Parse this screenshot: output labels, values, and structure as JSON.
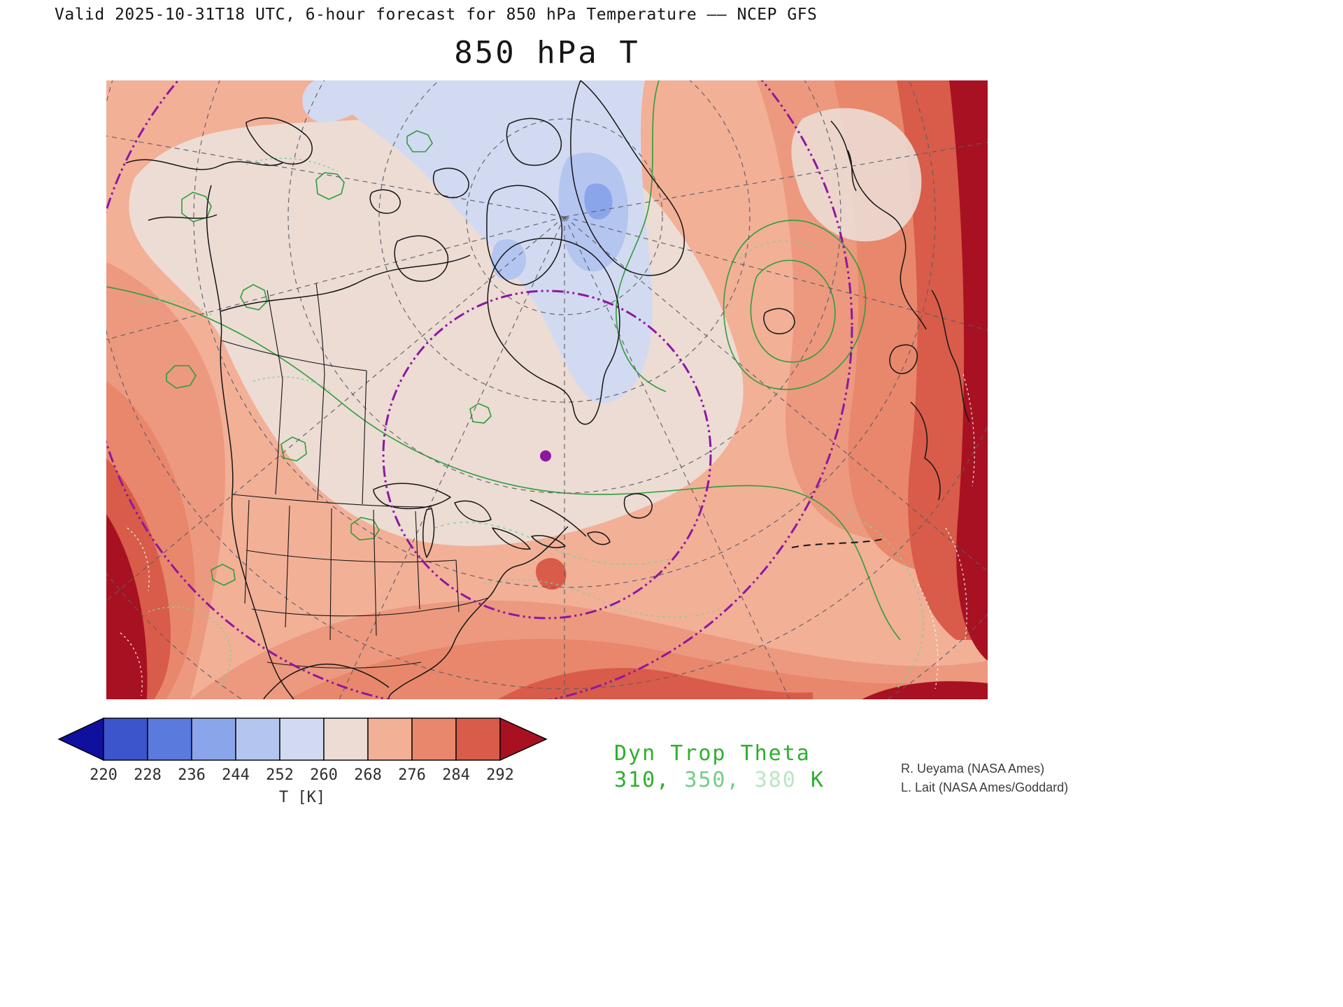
{
  "header": {
    "valid_line": "Valid 2025-10-31T18 UTC, 6-hour forecast for 850 hPa Temperature –– NCEP GFS",
    "title": "850 hPa T"
  },
  "colorbar": {
    "ticks": [
      "220",
      "228",
      "236",
      "244",
      "252",
      "260",
      "268",
      "276",
      "284",
      "292"
    ],
    "unit_label": "T [K]",
    "colors": [
      "#10109e",
      "#3c55cd",
      "#5b7ade",
      "#8aa5ea",
      "#b4c5f0",
      "#d2daf1",
      "#ecdcd4",
      "#f2b097",
      "#e8876b",
      "#d85c49",
      "#a81122"
    ]
  },
  "theta_legend": {
    "title": "Dyn Trop Theta",
    "title_color": "#2faf2f",
    "levels": [
      {
        "value": "310",
        "color": "#2faf2f"
      },
      {
        "value": "350",
        "color": "#74cc85"
      },
      {
        "value": "380",
        "color": "#b9e6c1"
      }
    ],
    "separator": ", ",
    "unit": " K"
  },
  "credits": {
    "line1": "R. Ueyama (NASA Ames)",
    "line2": "L. Lait (NASA Ames/Goddard)"
  },
  "map": {
    "features": {
      "coastline_color": "#141414",
      "graticule_color": "#5c5c66",
      "range_circle_color": "#8d17a0",
      "theta_310_color": "#2d9e3a",
      "theta_350_color": "#7fd296",
      "theta_380_color": "#eef8f0"
    }
  }
}
